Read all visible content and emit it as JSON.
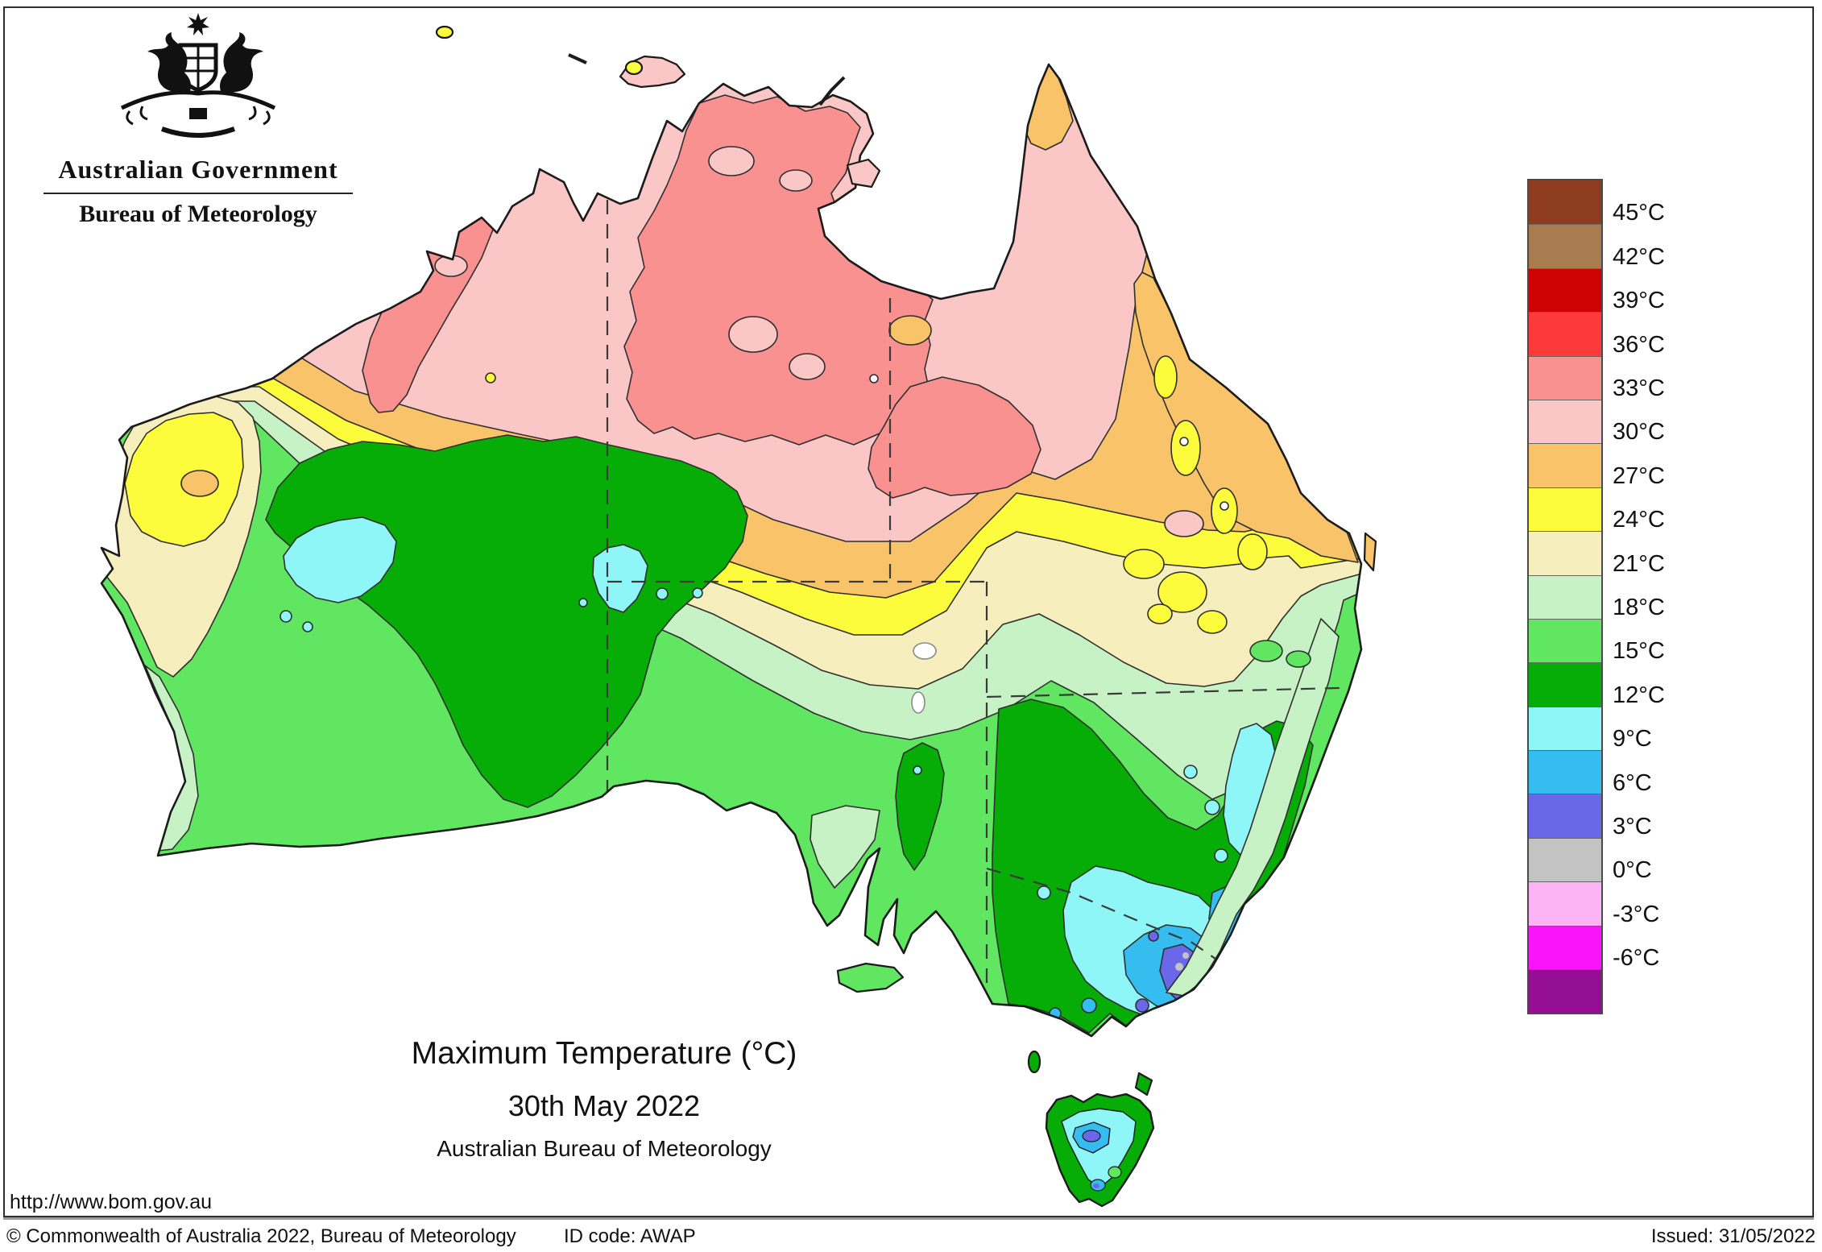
{
  "header": {
    "logo": {
      "crest_icon": "australian-coat-of-arms",
      "government": "Australian Government",
      "bureau": "Bureau of Meteorology"
    }
  },
  "title": {
    "line1": "Maximum Temperature (°C)",
    "line2": "30th May 2022",
    "line3": "Australian Bureau of Meteorology"
  },
  "legend": {
    "entries": [
      {
        "color": "#8E3C1F",
        "speckled": false,
        "label": "45°C"
      },
      {
        "color": "#A97C50",
        "speckled": true,
        "label": "42°C"
      },
      {
        "color": "#CE0202",
        "speckled": false,
        "label": "39°C"
      },
      {
        "color": "#FC3A3A",
        "speckled": false,
        "label": "36°C"
      },
      {
        "color": "#F99191",
        "speckled": false,
        "label": "33°C"
      },
      {
        "color": "#FBC6C6",
        "speckled": false,
        "label": "30°C"
      },
      {
        "color": "#F9C36A",
        "speckled": false,
        "label": "27°C"
      },
      {
        "color": "#FCFC3C",
        "speckled": false,
        "label": "24°C"
      },
      {
        "color": "#F6EFBD",
        "speckled": false,
        "label": "21°C"
      },
      {
        "color": "#C6F2C6",
        "speckled": false,
        "label": "18°C"
      },
      {
        "color": "#60E660",
        "speckled": false,
        "label": "15°C"
      },
      {
        "color": "#07AD07",
        "speckled": false,
        "label": "12°C"
      },
      {
        "color": "#8FF6F8",
        "speckled": false,
        "label": "9°C"
      },
      {
        "color": "#35BDF0",
        "speckled": false,
        "label": "6°C"
      },
      {
        "color": "#6A68E8",
        "speckled": false,
        "label": "3°C"
      },
      {
        "color": "#C3C3C3",
        "speckled": false,
        "label": "0°C"
      },
      {
        "color": "#FCB4F4",
        "speckled": false,
        "label": "-3°C"
      },
      {
        "color": "#FA14FA",
        "speckled": false,
        "label": "-6°C"
      },
      {
        "color": "#940E94",
        "speckled": false,
        "label": null
      }
    ]
  },
  "map": {
    "band_colors": {
      "c45": "#8E3C1F",
      "c42": "#A97C50",
      "c39": "#CE0202",
      "c36": "#FC3A3A",
      "c33": "#F99191",
      "c30": "#FBC6C6",
      "c27": "#F9C36A",
      "c24": "#FCFC3C",
      "c21": "#F6EFBD",
      "c18": "#C6F2C6",
      "c15": "#60E660",
      "c12": "#07AD07",
      "c9": "#8FF6F8",
      "c6": "#35BDF0",
      "c3": "#6A68E8",
      "c0": "#C3C3C3",
      "cm3": "#FCB4F4",
      "cm6": "#FA14FA",
      "cm9": "#940E94",
      "coast": "#1b1b1b",
      "border_line": "#3a3a3a"
    }
  },
  "footer": {
    "url": "http://www.bom.gov.au",
    "copyright": "© Commonwealth of Australia 2022, Bureau of Meteorology",
    "id_code": "ID code: AWAP",
    "issued": "Issued: 31/05/2022"
  }
}
